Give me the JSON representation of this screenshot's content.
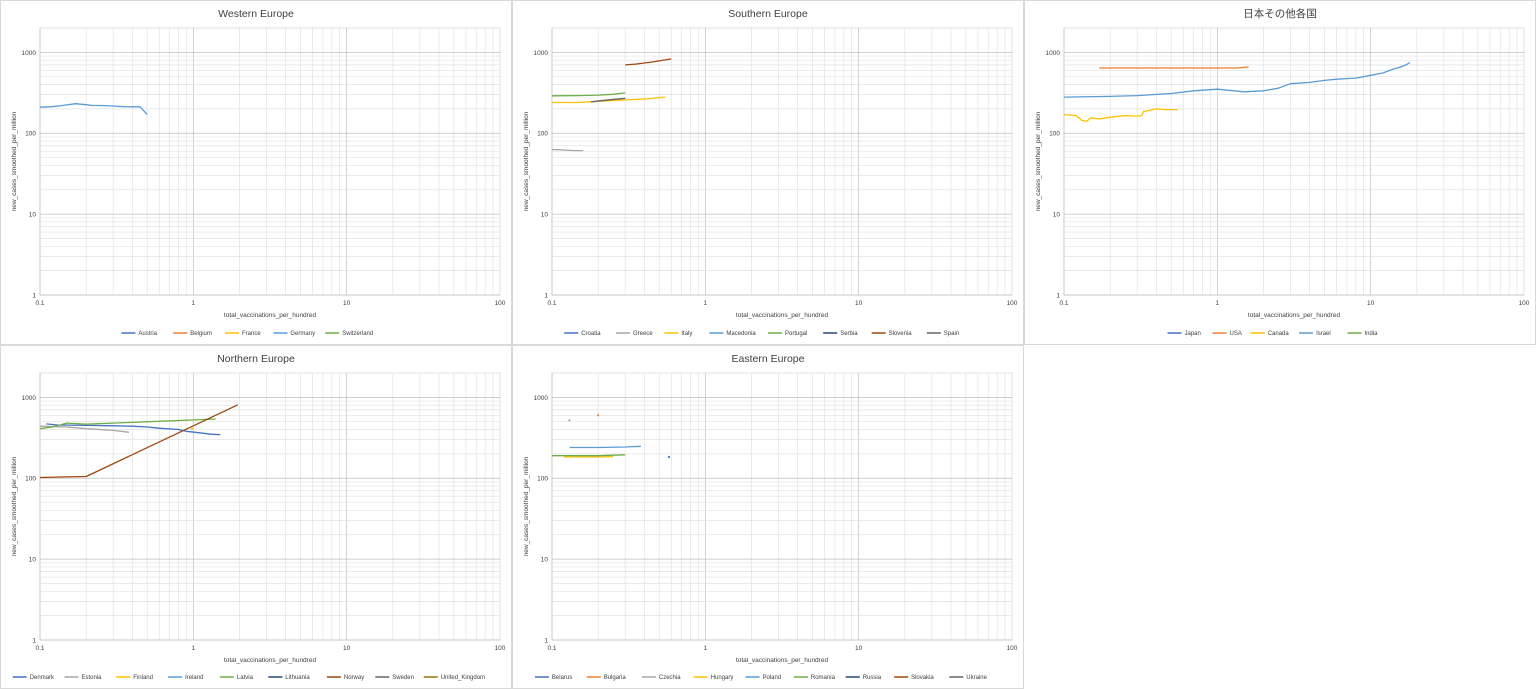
{
  "chart_data": [
    {
      "type": "line",
      "title": "Western Europe",
      "xlabel": "total_vaccinations_per_hundred",
      "ylabel": "new_cases_smoothed_per_million",
      "xscale": "log",
      "yscale": "log",
      "xlim": [
        0.1,
        100
      ],
      "ylim": [
        1,
        2000
      ],
      "x_ticks": [
        "0.1",
        "1",
        "10",
        "100"
      ],
      "y_ticks": [
        "1",
        "10",
        "100",
        "1000"
      ],
      "grid": true,
      "legend": "bottom",
      "series": [
        {
          "name": "Austria",
          "color": "#4472C4",
          "points": []
        },
        {
          "name": "Belgium",
          "color": "#ED7D31",
          "points": []
        },
        {
          "name": "France",
          "color": "#FFC000",
          "points": []
        },
        {
          "name": "Germany",
          "color": "#5B9BD5",
          "points": [
            [
              0.1,
              210
            ],
            [
              0.12,
              213
            ],
            [
              0.14,
              220
            ],
            [
              0.17,
              232
            ],
            [
              0.2,
              225
            ],
            [
              0.22,
              220
            ],
            [
              0.25,
              220
            ],
            [
              0.3,
              217
            ],
            [
              0.35,
              213
            ],
            [
              0.4,
              212
            ],
            [
              0.45,
              212
            ],
            [
              0.5,
              170
            ]
          ]
        },
        {
          "name": "Switzerland",
          "color": "#70AD47",
          "points": []
        }
      ]
    },
    {
      "type": "line",
      "title": "Southern Europe",
      "xlabel": "total_vaccinations_per_hundred",
      "ylabel": "new_cases_smoothed_per_million",
      "xscale": "log",
      "yscale": "log",
      "xlim": [
        0.1,
        100
      ],
      "ylim": [
        1,
        2000
      ],
      "x_ticks": [
        "0.1",
        "1",
        "10",
        "100"
      ],
      "y_ticks": [
        "1",
        "10",
        "100",
        "1000"
      ],
      "grid": true,
      "legend": "bottom",
      "series": [
        {
          "name": "Croatia",
          "color": "#4472C4",
          "points": []
        },
        {
          "name": "Greece",
          "color": "#A5A5A5",
          "points": [
            [
              0.1,
              63
            ],
            [
              0.12,
              62
            ],
            [
              0.14,
              61
            ],
            [
              0.16,
              61
            ]
          ]
        },
        {
          "name": "Italy",
          "color": "#FFC000",
          "points": [
            [
              0.1,
              240
            ],
            [
              0.15,
              240
            ],
            [
              0.2,
              248
            ],
            [
              0.3,
              258
            ],
            [
              0.4,
              265
            ],
            [
              0.55,
              280
            ]
          ]
        },
        {
          "name": "Macedonia",
          "color": "#5B9BD5",
          "points": []
        },
        {
          "name": "Portugal",
          "color": "#70AD47",
          "points": [
            [
              0.1,
              290
            ],
            [
              0.15,
              292
            ],
            [
              0.2,
              296
            ],
            [
              0.25,
              303
            ],
            [
              0.3,
              315
            ]
          ]
        },
        {
          "name": "Serbia",
          "color": "#264478",
          "points": []
        },
        {
          "name": "Slovenia",
          "color": "#9E480E",
          "points": [
            [
              0.3,
              700
            ],
            [
              0.35,
              715
            ],
            [
              0.45,
              760
            ],
            [
              0.6,
              830
            ]
          ]
        },
        {
          "name": "Spain",
          "color": "#636363",
          "points": [
            [
              0.18,
              245
            ],
            [
              0.22,
              255
            ],
            [
              0.3,
              270
            ]
          ]
        }
      ]
    },
    {
      "type": "line",
      "title": "日本その他各国",
      "xlabel": "total_vaccinations_per_hundred",
      "ylabel": "new_cases_smoothed_per_million",
      "xscale": "log",
      "yscale": "log",
      "xlim": [
        0.1,
        100
      ],
      "ylim": [
        1,
        2000
      ],
      "x_ticks": [
        "0.1",
        "1",
        "10",
        "100"
      ],
      "y_ticks": [
        "1",
        "10",
        "100",
        "1000"
      ],
      "grid": true,
      "legend": "bottom",
      "series": [
        {
          "name": "Japan",
          "color": "#4472C4",
          "points": []
        },
        {
          "name": "USA",
          "color": "#ED7D31",
          "points": [
            [
              0.17,
              640
            ],
            [
              0.19,
              640
            ],
            [
              1.35,
              640
            ],
            [
              1.6,
              660
            ]
          ]
        },
        {
          "name": "Canada",
          "color": "#FFC000",
          "points": [
            [
              0.1,
              170
            ],
            [
              0.12,
              165
            ],
            [
              0.13,
              145
            ],
            [
              0.14,
              140
            ],
            [
              0.15,
              155
            ],
            [
              0.17,
              150
            ],
            [
              0.2,
              158
            ],
            [
              0.25,
              165
            ],
            [
              0.3,
              163
            ],
            [
              0.32,
              165
            ],
            [
              0.33,
              185
            ],
            [
              0.4,
              200
            ],
            [
              0.45,
              196
            ],
            [
              0.55,
              196
            ]
          ]
        },
        {
          "name": "Israel",
          "color": "#5B9BD5",
          "points": [
            [
              0.1,
              280
            ],
            [
              0.2,
              285
            ],
            [
              0.3,
              292
            ],
            [
              0.5,
              310
            ],
            [
              0.7,
              335
            ],
            [
              1,
              350
            ],
            [
              1.5,
              325
            ],
            [
              2,
              335
            ],
            [
              2.5,
              360
            ],
            [
              3,
              410
            ],
            [
              4,
              425
            ],
            [
              5,
              450
            ],
            [
              6,
              465
            ],
            [
              8,
              480
            ],
            [
              10,
              520
            ],
            [
              12,
              555
            ],
            [
              14,
              620
            ],
            [
              15,
              640
            ],
            [
              17,
              700
            ],
            [
              18,
              750
            ]
          ]
        },
        {
          "name": "India",
          "color": "#70AD47",
          "points": []
        }
      ]
    },
    {
      "type": "line",
      "title": "Northern Europe",
      "xlabel": "total_vaccinations_per_hundred",
      "ylabel": "new_cases_smoothed_per_million",
      "xscale": "log",
      "yscale": "log",
      "xlim": [
        0.1,
        100
      ],
      "ylim": [
        1,
        2000
      ],
      "x_ticks": [
        "0.1",
        "1",
        "10",
        "100"
      ],
      "y_ticks": [
        "1",
        "10",
        "100",
        "1000"
      ],
      "grid": true,
      "legend": "bottom",
      "series": [
        {
          "name": "Denmark",
          "color": "#4472C4",
          "points": [
            [
              0.11,
              470
            ],
            [
              0.13,
              455
            ],
            [
              0.2,
              450
            ],
            [
              0.3,
              445
            ],
            [
              0.4,
              440
            ],
            [
              0.5,
              430
            ],
            [
              0.6,
              415
            ],
            [
              0.8,
              400
            ],
            [
              0.9,
              380
            ],
            [
              1.1,
              365
            ],
            [
              1.3,
              350
            ],
            [
              1.5,
              345
            ]
          ]
        },
        {
          "name": "Estonia",
          "color": "#A5A5A5",
          "points": [
            [
              0.1,
              440
            ],
            [
              0.15,
              430
            ],
            [
              0.2,
              410
            ],
            [
              0.3,
              390
            ],
            [
              0.38,
              370
            ]
          ]
        },
        {
          "name": "Finland",
          "color": "#FFC000",
          "points": [
            [
              0.98,
              410
            ]
          ]
        },
        {
          "name": "Ireland",
          "color": "#5B9BD5",
          "points": []
        },
        {
          "name": "Latvia",
          "color": "#70AD47",
          "points": [
            [
              0.1,
              410
            ],
            [
              0.12,
              430
            ],
            [
              0.15,
              480
            ],
            [
              0.2,
              465
            ],
            [
              1.4,
              540
            ]
          ]
        },
        {
          "name": "Lithuania",
          "color": "#264478",
          "points": []
        },
        {
          "name": "Norway",
          "color": "#9E480E",
          "points": [
            [
              0.1,
              102
            ],
            [
              0.15,
              104
            ],
            [
              0.2,
              105
            ],
            [
              1.95,
              810
            ]
          ]
        },
        {
          "name": "Sweden",
          "color": "#636363",
          "points": []
        },
        {
          "name": "United_Kingdom",
          "color": "#997300",
          "points": []
        }
      ]
    },
    {
      "type": "line",
      "title": "Eastern Europe",
      "xlabel": "total_vaccinations_per_hundred",
      "ylabel": "new_cases_smoothed_per_million",
      "xscale": "log",
      "yscale": "log",
      "xlim": [
        0.1,
        100
      ],
      "ylim": [
        1,
        2000
      ],
      "x_ticks": [
        "0.1",
        "1",
        "10",
        "100"
      ],
      "y_ticks": [
        "1",
        "10",
        "100",
        "1000"
      ],
      "grid": true,
      "legend": "bottom",
      "series": [
        {
          "name": "Belarus",
          "color": "#4472C4",
          "points": [
            [
              0.58,
              183
            ]
          ]
        },
        {
          "name": "Bulgaria",
          "color": "#ED7D31",
          "points": [
            [
              0.2,
              600
            ]
          ]
        },
        {
          "name": "Czechia",
          "color": "#A5A5A5",
          "points": [
            [
              0.13,
              520
            ]
          ]
        },
        {
          "name": "Hungary",
          "color": "#FFC000",
          "points": [
            [
              0.12,
              183
            ],
            [
              0.2,
              183
            ],
            [
              0.25,
              185
            ]
          ]
        },
        {
          "name": "Poland",
          "color": "#5B9BD5",
          "points": [
            [
              0.13,
              240
            ],
            [
              0.2,
              240
            ],
            [
              0.3,
              243
            ],
            [
              0.38,
              248
            ]
          ]
        },
        {
          "name": "Romania",
          "color": "#70AD47",
          "points": [
            [
              0.1,
              190
            ],
            [
              0.2,
              190
            ],
            [
              0.3,
              195
            ]
          ]
        },
        {
          "name": "Russia",
          "color": "#264478",
          "points": []
        },
        {
          "name": "Slovakia",
          "color": "#9E480E",
          "points": []
        },
        {
          "name": "Ukraine",
          "color": "#636363",
          "points": []
        }
      ]
    }
  ]
}
